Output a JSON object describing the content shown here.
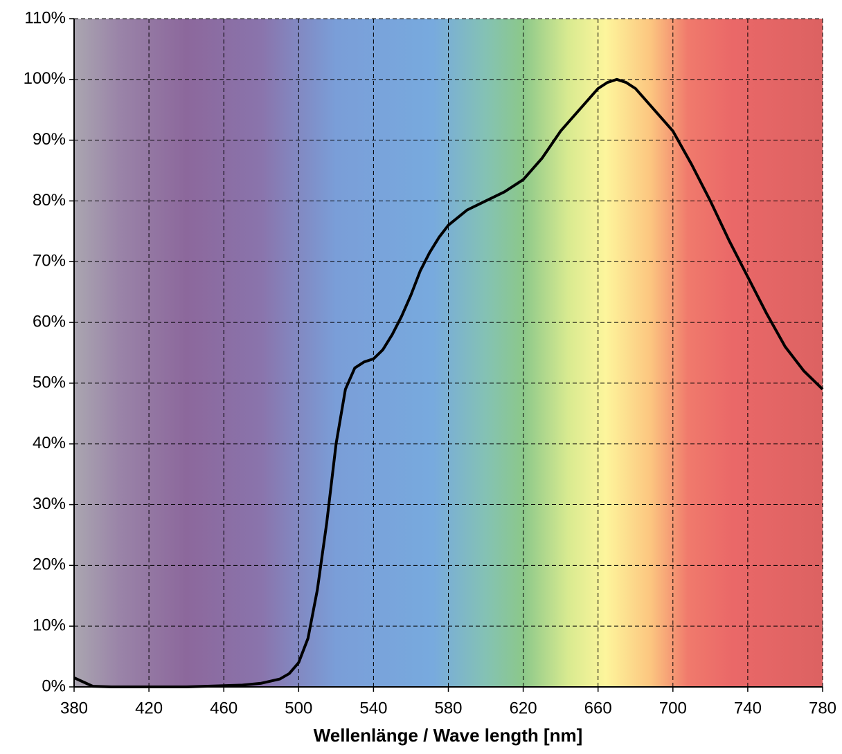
{
  "chart_data": {
    "type": "line",
    "x_label": "Wellenlänge / Wave length [nm]",
    "x": [
      380,
      390,
      400,
      420,
      440,
      460,
      470,
      480,
      490,
      495,
      500,
      505,
      510,
      515,
      520,
      525,
      530,
      535,
      540,
      545,
      550,
      555,
      560,
      565,
      570,
      575,
      580,
      590,
      600,
      610,
      620,
      630,
      640,
      650,
      660,
      665,
      670,
      675,
      680,
      690,
      700,
      710,
      720,
      730,
      740,
      750,
      760,
      770,
      780
    ],
    "series": [
      {
        "color": "#000000",
        "values": [
          1.5,
          0.1,
          0,
          0,
          0,
          0.2,
          0.3,
          0.6,
          1.3,
          2.2,
          4,
          8,
          16,
          27,
          40,
          49,
          52.5,
          53.5,
          54,
          55.5,
          58,
          61,
          64.5,
          68.5,
          71.5,
          74,
          76,
          78.5,
          80,
          81.5,
          83.5,
          87,
          91.5,
          95,
          98.5,
          99.5,
          100,
          99.5,
          98.5,
          95,
          91.5,
          86,
          80,
          73.5,
          67.5,
          61.5,
          56,
          52,
          49
        ]
      }
    ],
    "xlim": [
      380,
      780
    ],
    "xticks": [
      380,
      420,
      460,
      500,
      540,
      580,
      620,
      660,
      700,
      740,
      780
    ],
    "ylim": [
      0,
      110
    ],
    "yticks": [
      {
        "value": 0,
        "label": "0%"
      },
      {
        "value": 10,
        "label": "10%"
      },
      {
        "value": 20,
        "label": "20%"
      },
      {
        "value": 30,
        "label": "30%"
      },
      {
        "value": 40,
        "label": "40%"
      },
      {
        "value": 50,
        "label": "50%"
      },
      {
        "value": 60,
        "label": "60%"
      },
      {
        "value": 70,
        "label": "70%"
      },
      {
        "value": 80,
        "label": "80%"
      },
      {
        "value": 90,
        "label": "90%"
      },
      {
        "value": 100,
        "label": "100%"
      },
      {
        "value": 110,
        "label": "110%"
      }
    ],
    "grid": true
  }
}
